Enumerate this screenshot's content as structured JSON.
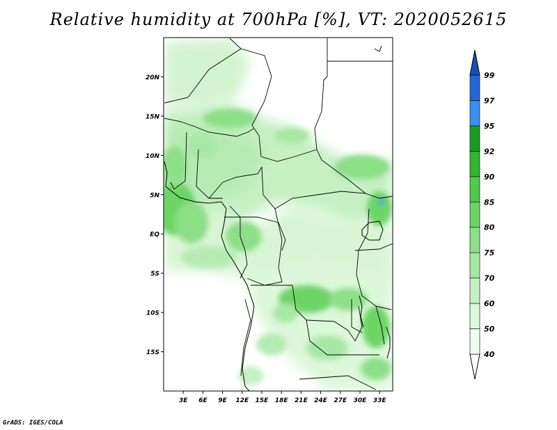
{
  "title": "Relative humidity at 700hPa [%], VT: 2020052615",
  "credit": "GrADS: IGES/COLA",
  "map": {
    "lat_ticks": [
      "20N",
      "15N",
      "10N",
      "5N",
      "EQ",
      "5S",
      "10S",
      "15S"
    ],
    "lon_ticks": [
      "3E",
      "6E",
      "9E",
      "12E",
      "15E",
      "18E",
      "21E",
      "24E",
      "27E",
      "30E",
      "33E"
    ],
    "lat_values": [
      20,
      15,
      10,
      5,
      0,
      -5,
      -10,
      -15
    ],
    "lon_values": [
      3,
      6,
      9,
      12,
      15,
      18,
      21,
      24,
      27,
      30,
      33
    ],
    "lat_range": [
      -20,
      25
    ],
    "lon_range": [
      0,
      35
    ]
  },
  "colorbar": {
    "labels": [
      "99",
      "97",
      "95",
      "92",
      "90",
      "85",
      "80",
      "75",
      "70",
      "60",
      "50",
      "40"
    ],
    "levels": [
      40,
      50,
      60,
      70,
      75,
      80,
      85,
      90,
      92,
      95,
      97,
      99
    ],
    "colors": [
      "#f0fcf0",
      "#dcf7da",
      "#c4f0c2",
      "#a8e8a5",
      "#8ddf88",
      "#6dd466",
      "#4ec94a",
      "#33b532",
      "#1e9a22",
      "#3a8ff0",
      "#2468d8",
      "#1a4fb8"
    ],
    "below_color": "#ffffff",
    "above_color": "#1a4fb8"
  }
}
